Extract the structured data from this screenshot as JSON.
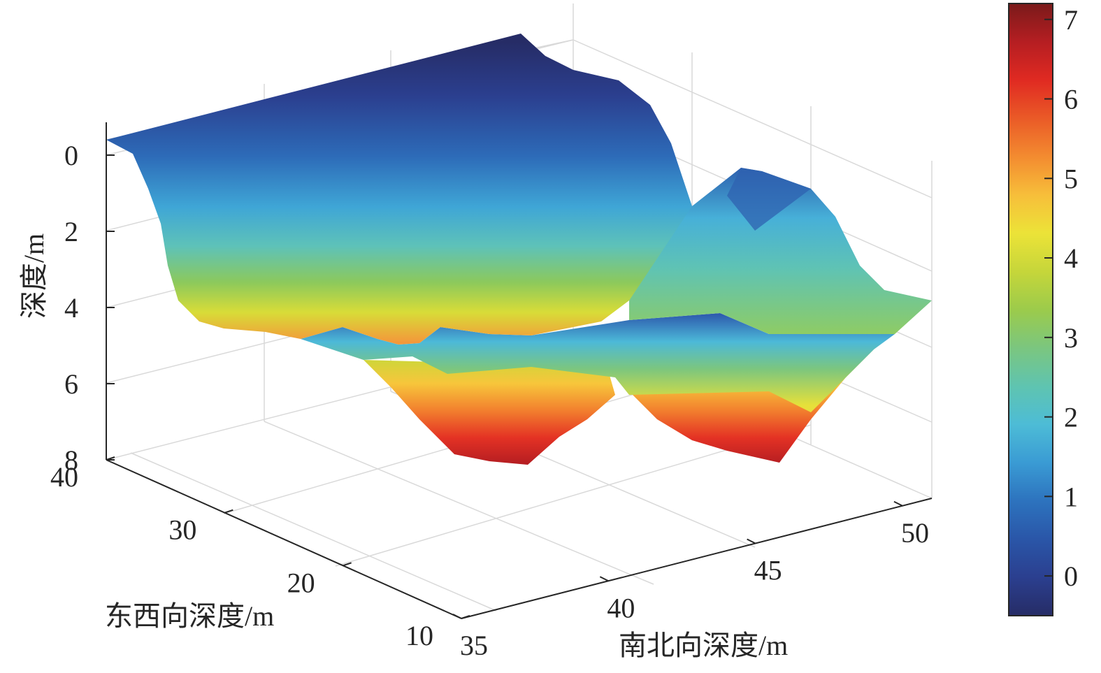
{
  "chart_data": {
    "type": "surface3d",
    "title": "",
    "zlabel": "深度/m",
    "xlabel": "东西向深度/m",
    "ylabel": "南北向深度/m",
    "z_ticks": [
      "0",
      "2",
      "4",
      "6",
      "8"
    ],
    "z_reversed": true,
    "zlim": [
      -0.5,
      8
    ],
    "x_ticks": [
      "40",
      "30",
      "20",
      "10"
    ],
    "xlim": [
      10,
      40
    ],
    "y_ticks": [
      "35",
      "40",
      "45",
      "50"
    ],
    "ylim": [
      35,
      51
    ],
    "grid": true,
    "colorbar": {
      "ticks": [
        "0",
        "1",
        "2",
        "3",
        "4",
        "5",
        "6",
        "7"
      ],
      "range": [
        -0.5,
        7.2
      ],
      "colors": [
        "#262c66",
        "#2b3f8f",
        "#2a56a8",
        "#2d73be",
        "#3a9bd4",
        "#4dbcd6",
        "#5fc4b0",
        "#7bc67f",
        "#9ccb4b",
        "#c6d63a",
        "#ece338",
        "#f7be3a",
        "#f38b30",
        "#ea5a27",
        "#e02a22",
        "#b51e22",
        "#7a1a1a"
      ]
    },
    "surface_description": "Depth surface: shallow (0–1 m) toward the back edge, deepening to ~7.5 m in two troughs along the front, with a shallow bump at the right side."
  }
}
